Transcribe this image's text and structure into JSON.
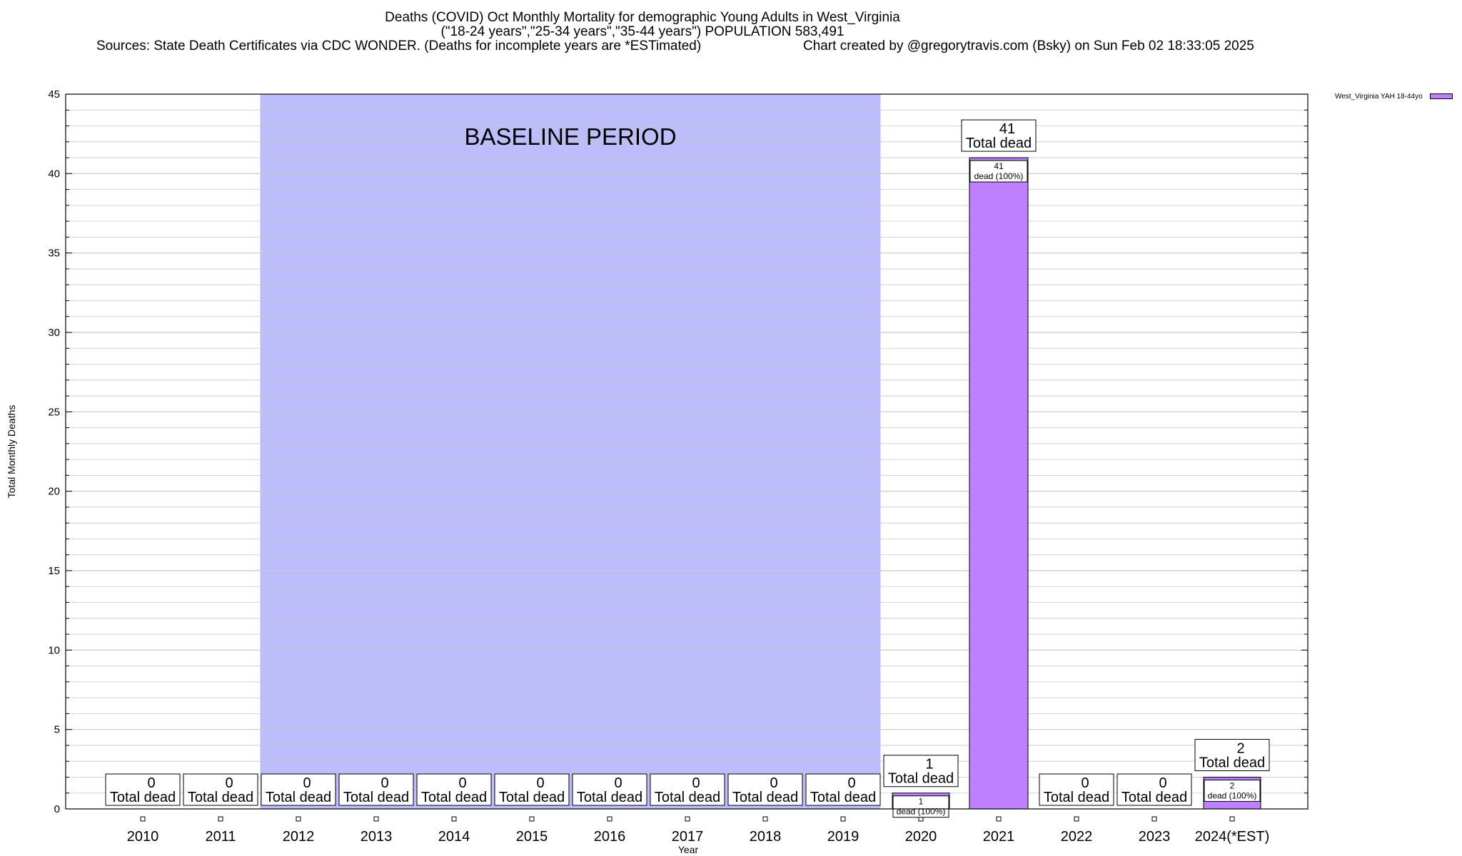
{
  "header": {
    "title_line1": "Deaths (COVID) Oct Monthly Mortality for demographic Young Adults in West_Virginia",
    "title_line2": "(\"18-24 years\",\"25-34 years\",\"35-44 years\") POPULATION 583,491",
    "sources": "Sources: State Death Certificates via CDC WONDER. (Deaths for incomplete years are *ESTimated)",
    "credit": "Chart created by @gregorytravis.com (Bsky) on Sun Feb 02 18:33:05 2025"
  },
  "colors": {
    "bar": "#bf80ff",
    "baseline_band": "#bdbdfb",
    "grid": "#c8c8c8"
  },
  "chart_data": {
    "type": "bar",
    "xlabel": "Year",
    "ylabel": "Total Monthly Deaths",
    "ylim": [
      0,
      45
    ],
    "yticks": [
      0,
      5,
      10,
      15,
      20,
      25,
      30,
      35,
      40,
      45
    ],
    "categories": [
      "2010",
      "2011",
      "2012",
      "2013",
      "2014",
      "2015",
      "2016",
      "2017",
      "2018",
      "2019",
      "2020",
      "2021",
      "2022",
      "2023",
      "2024(*EST)"
    ],
    "series": [
      {
        "name": "West_Virginia YAH 18-44yo",
        "values": [
          0,
          0,
          0,
          0,
          0,
          0,
          0,
          0,
          0,
          0,
          1,
          41,
          0,
          0,
          2
        ]
      }
    ],
    "total_label": "Total dead",
    "inner_label": "dead (100%)",
    "baseline_label": "BASELINE PERIOD",
    "baseline_range": [
      "2012",
      "2019"
    ],
    "grid": true,
    "legend_position": "top-right outside"
  }
}
